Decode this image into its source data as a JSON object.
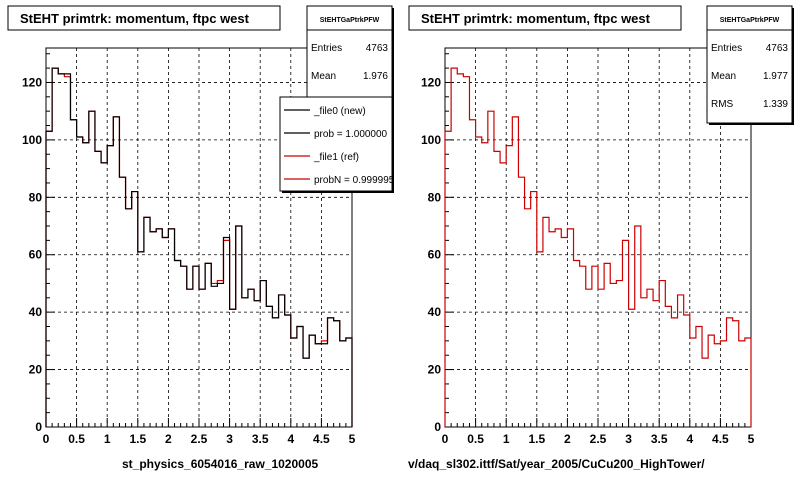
{
  "colors": {
    "new": "#000000",
    "ref": "#cc0000",
    "background": "#ffffff",
    "box_shadow": "#000000"
  },
  "footers": {
    "left": "st_physics_6054016_raw_1020005",
    "right": "v/daq_sl302.ittf/Sat/year_2005/CuCu200_HighTower/"
  },
  "panels": [
    {
      "title": "StEHT primtrk: momentum, ftpc west",
      "stats": {
        "name": "StEHTGaPtrkPFW",
        "rows": [
          {
            "label": "Entries",
            "value": "4763"
          },
          {
            "label": "Mean",
            "value": "1.976"
          }
        ]
      },
      "legend": {
        "entries": [
          {
            "label": "_file0 (new)",
            "color": "#000000"
          },
          {
            "label": "prob = 1.000000",
            "color": "#000000"
          },
          {
            "label": "_file1 (ref)",
            "color": "#cc0000"
          },
          {
            "label": "probN = 0.999995",
            "color": "#cc0000"
          }
        ]
      }
    },
    {
      "title": "StEHT primtrk: momentum, ftpc west",
      "stats": {
        "name": "StEHTGaPtrkPFW",
        "rows": [
          {
            "label": "Entries",
            "value": "4763"
          },
          {
            "label": "Mean",
            "value": "1.977"
          },
          {
            "label": "RMS",
            "value": "1.339"
          }
        ]
      }
    }
  ],
  "chart_data": [
    {
      "type": "line",
      "subtype": "histogram-step",
      "xlim": [
        0,
        5
      ],
      "ylim": [
        0,
        132
      ],
      "xticks": [
        "0",
        "0.5",
        "1",
        "1.5",
        "2",
        "2.5",
        "3",
        "3.5",
        "4",
        "4.5",
        "5"
      ],
      "yticks": [
        "0",
        "20",
        "40",
        "60",
        "80",
        "100",
        "120"
      ],
      "grid": true,
      "legend_position": "top-right",
      "bin_width": 0.1,
      "bin_start": 0,
      "series": [
        {
          "name": "_file0 (new)",
          "values": [
            103,
            125,
            123,
            123,
            107,
            101,
            99,
            110,
            96,
            92,
            98,
            108,
            87,
            76,
            82,
            61,
            73,
            68,
            69,
            66,
            69,
            58,
            56,
            48,
            56,
            48,
            57,
            49,
            50,
            66,
            41,
            70,
            45,
            48,
            44,
            51,
            42,
            38,
            46,
            39,
            31,
            35,
            24,
            32,
            29,
            29,
            38,
            37,
            30,
            31
          ]
        },
        {
          "name": "_file1 (ref)",
          "values": [
            103,
            125,
            123,
            122,
            107,
            101,
            99,
            110,
            96,
            92,
            98,
            108,
            87,
            76,
            82,
            61,
            73,
            68,
            69,
            66,
            69,
            58,
            56,
            48,
            56,
            48,
            57,
            50,
            51,
            65,
            41,
            70,
            45,
            48,
            44,
            51,
            42,
            38,
            46,
            39,
            31,
            35,
            24,
            32,
            29,
            30,
            38,
            37,
            30,
            31
          ]
        }
      ]
    },
    {
      "type": "line",
      "subtype": "histogram-step",
      "xlim": [
        0,
        5
      ],
      "ylim": [
        0,
        132
      ],
      "xticks": [
        "0",
        "0.5",
        "1",
        "1.5",
        "2",
        "2.5",
        "3",
        "3.5",
        "4",
        "4.5",
        "5"
      ],
      "yticks": [
        "0",
        "20",
        "40",
        "60",
        "80",
        "100",
        "120"
      ],
      "grid": true,
      "bin_width": 0.1,
      "bin_start": 0,
      "series": [
        {
          "name": "",
          "values": [
            103,
            125,
            123,
            122,
            107,
            101,
            99,
            110,
            96,
            92,
            98,
            108,
            87,
            76,
            82,
            61,
            73,
            68,
            69,
            66,
            69,
            58,
            56,
            48,
            56,
            48,
            57,
            50,
            51,
            65,
            41,
            70,
            45,
            48,
            44,
            51,
            42,
            38,
            46,
            39,
            31,
            35,
            24,
            32,
            29,
            30,
            38,
            37,
            30,
            31
          ]
        }
      ]
    }
  ]
}
